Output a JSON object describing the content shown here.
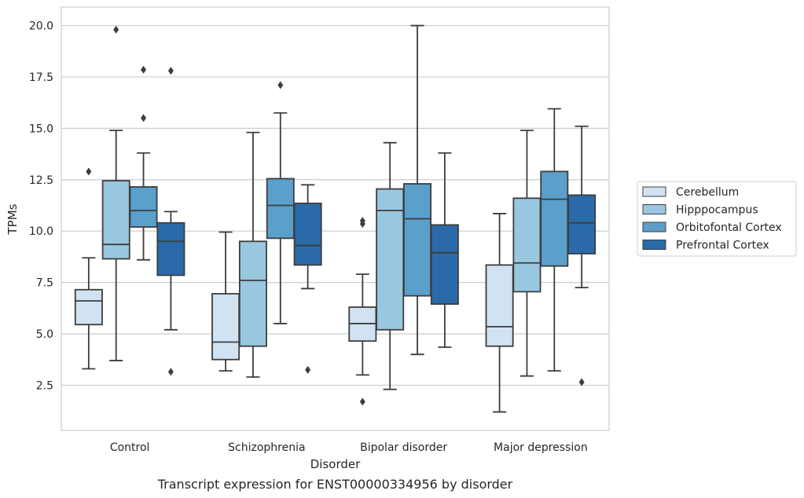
{
  "chart_data": {
    "type": "box",
    "title": "",
    "caption": "Transcript expression for ENST00000334956 by disorder",
    "xlabel": "Disorder",
    "ylabel": "TPMs",
    "ylim": [
      0.3,
      20.9
    ],
    "yticks": [
      2.5,
      5.0,
      7.5,
      10.0,
      12.5,
      15.0,
      17.5,
      20.0
    ],
    "ytick_labels": [
      "2.5",
      "5.0",
      "7.5",
      "10.0",
      "12.5",
      "15.0",
      "17.5",
      "20.0"
    ],
    "grid": "horizontal",
    "legend_position": "right",
    "categories": [
      "Control",
      "Schizophrenia",
      "Bipolar disorder",
      "Major depression"
    ],
    "series": [
      {
        "name": "Cerebellum",
        "color": "#d1e2f2",
        "boxes": [
          {
            "min": 3.3,
            "q1": 5.45,
            "median": 6.6,
            "q3": 7.15,
            "max": 8.7,
            "outliers": [
              12.9
            ]
          },
          {
            "min": 3.2,
            "q1": 3.75,
            "median": 4.6,
            "q3": 6.95,
            "max": 9.95,
            "outliers": []
          },
          {
            "min": 3.0,
            "q1": 4.65,
            "median": 5.5,
            "q3": 6.3,
            "max": 7.9,
            "outliers": [
              10.5,
              10.35,
              1.7
            ]
          },
          {
            "min": 1.2,
            "q1": 4.4,
            "median": 5.35,
            "q3": 8.35,
            "max": 10.85,
            "outliers": []
          }
        ]
      },
      {
        "name": "Hipppocampus",
        "color": "#9ac7e0",
        "boxes": [
          {
            "min": 3.7,
            "q1": 8.65,
            "median": 9.35,
            "q3": 12.45,
            "max": 14.9,
            "outliers": [
              19.8
            ]
          },
          {
            "min": 2.9,
            "q1": 4.4,
            "median": 7.6,
            "q3": 9.5,
            "max": 14.8,
            "outliers": []
          },
          {
            "min": 2.3,
            "q1": 5.2,
            "median": 11.0,
            "q3": 12.05,
            "max": 14.3,
            "outliers": []
          },
          {
            "min": 2.95,
            "q1": 7.05,
            "median": 8.45,
            "q3": 11.6,
            "max": 14.9,
            "outliers": []
          }
        ]
      },
      {
        "name": "Orbitofontal Cortex",
        "color": "#5b9fcb",
        "boxes": [
          {
            "min": 8.6,
            "q1": 10.2,
            "median": 11.0,
            "q3": 12.15,
            "max": 13.8,
            "outliers": [
              17.85,
              15.5
            ]
          },
          {
            "min": 5.5,
            "q1": 9.65,
            "median": 11.25,
            "q3": 12.55,
            "max": 15.75,
            "outliers": [
              17.1
            ]
          },
          {
            "min": 4.0,
            "q1": 6.85,
            "median": 10.6,
            "q3": 12.3,
            "max": 20.0,
            "outliers": []
          },
          {
            "min": 3.2,
            "q1": 8.3,
            "median": 11.55,
            "q3": 12.9,
            "max": 15.95,
            "outliers": []
          }
        ]
      },
      {
        "name": "Prefrontal Cortex",
        "color": "#2a6aa8",
        "boxes": [
          {
            "min": 5.2,
            "q1": 7.85,
            "median": 9.5,
            "q3": 10.4,
            "max": 10.95,
            "outliers": [
              17.8,
              3.15
            ]
          },
          {
            "min": 7.2,
            "q1": 8.35,
            "median": 9.3,
            "q3": 11.35,
            "max": 12.25,
            "outliers": [
              3.25
            ]
          },
          {
            "min": 4.35,
            "q1": 6.45,
            "median": 8.95,
            "q3": 10.3,
            "max": 13.8,
            "outliers": []
          },
          {
            "min": 7.25,
            "q1": 8.9,
            "median": 10.4,
            "q3": 11.75,
            "max": 15.1,
            "outliers": [
              2.65
            ]
          }
        ]
      }
    ]
  }
}
